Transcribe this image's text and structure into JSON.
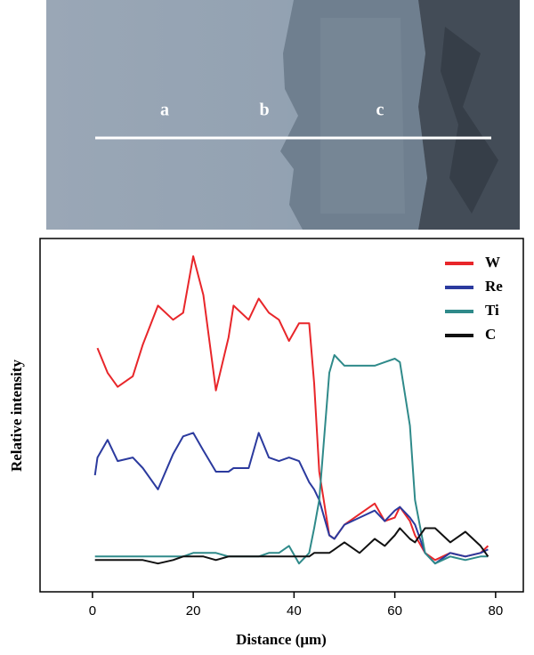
{
  "image": {
    "labels": [
      "a",
      "b",
      "c"
    ]
  },
  "chart_data": {
    "type": "line",
    "xlabel": "Distance (μm)",
    "ylabel": "Relative intensity",
    "xlim": [
      -10.4,
      85.5
    ],
    "xticks": [
      0,
      20,
      40,
      60,
      80
    ],
    "ylim": [
      0,
      100
    ],
    "legend": "upper right",
    "x": [
      0.5,
      1,
      3,
      5,
      8,
      10,
      13,
      16,
      18,
      20,
      22,
      24.5,
      27,
      28,
      31,
      33,
      35,
      37,
      39,
      41,
      43,
      44,
      45,
      47,
      48,
      50,
      53,
      56,
      58,
      60,
      61,
      63,
      64,
      66,
      68,
      71,
      74,
      77,
      78.5
    ],
    "series": [
      {
        "name": "W",
        "color": "#e8262a",
        "values": [
          null,
          69,
          62,
          58,
          61,
          70,
          81,
          77,
          79,
          95,
          84,
          57,
          72,
          81,
          77,
          83,
          79,
          77,
          71,
          76,
          76,
          59,
          34,
          16,
          15,
          19,
          22,
          25,
          20,
          21,
          24,
          20,
          16,
          11,
          9,
          11,
          10,
          11,
          13
        ]
      },
      {
        "name": "Re",
        "color": "#2b3a9e",
        "values": [
          33,
          38,
          43,
          37,
          38,
          35,
          29,
          39,
          44,
          45,
          40,
          34,
          34,
          35,
          35,
          45,
          38,
          37,
          38,
          37,
          31,
          29,
          26,
          16,
          15,
          19,
          21,
          23,
          20,
          23,
          24,
          21,
          19,
          11,
          8,
          11,
          10,
          11,
          12
        ]
      },
      {
        "name": "Ti",
        "color": "#2f8a8a",
        "values": [
          10,
          10,
          10,
          10,
          10,
          10,
          10,
          10,
          10,
          11,
          11,
          11,
          10,
          10,
          10,
          10,
          11,
          11,
          13,
          8,
          11,
          18,
          26,
          62,
          67,
          64,
          64,
          64,
          65,
          66,
          65,
          47,
          26,
          11,
          8,
          10,
          9,
          10,
          10
        ]
      },
      {
        "name": "C",
        "color": "#111111",
        "values": [
          9,
          9,
          9,
          9,
          9,
          9,
          8,
          9,
          10,
          10,
          10,
          9,
          10,
          10,
          10,
          10,
          10,
          10,
          10,
          10,
          10,
          11,
          11,
          11,
          12,
          14,
          11,
          15,
          13,
          16,
          18,
          15,
          14,
          18,
          18,
          14,
          17,
          13,
          10
        ]
      }
    ]
  }
}
